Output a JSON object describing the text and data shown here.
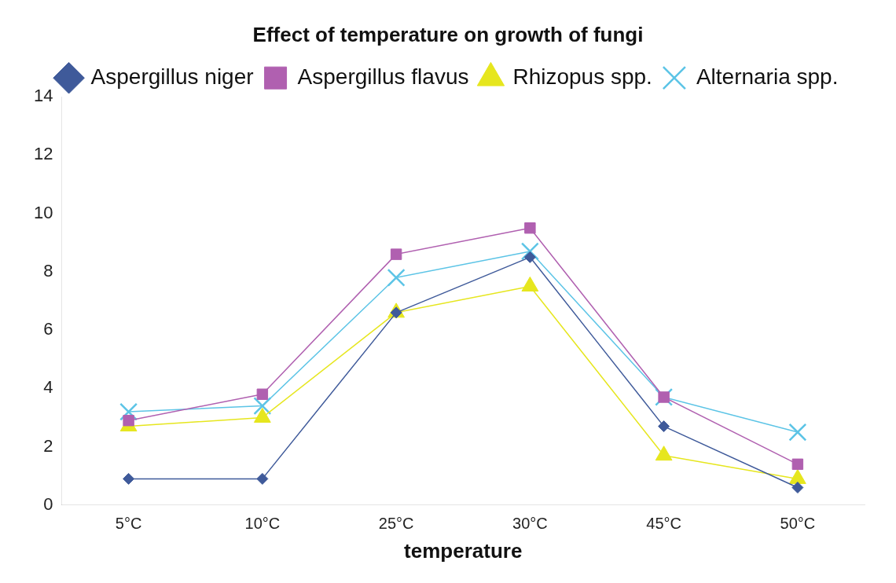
{
  "chart_data": {
    "type": "line",
    "title": "Effect of temperature on growth of fungi",
    "xlabel": "temperature",
    "categories": [
      "5°C",
      "10°C",
      "25°C",
      "30°C",
      "45°C",
      "50°C"
    ],
    "series": [
      {
        "name": "Aspergillus niger",
        "color": "#3f5a9a",
        "marker": "diamond",
        "values": [
          0.9,
          0.9,
          6.6,
          8.5,
          2.7,
          0.6
        ]
      },
      {
        "name": "Aspergillus flavus",
        "color": "#b060b0",
        "marker": "square",
        "values": [
          2.9,
          3.8,
          8.6,
          9.5,
          3.7,
          1.4
        ]
      },
      {
        "name": "Rhizopus spp.",
        "color": "#e6e61e",
        "marker": "triangle",
        "values": [
          2.7,
          3.0,
          6.6,
          7.5,
          1.7,
          0.9
        ]
      },
      {
        "name": "Alternaria spp.",
        "color": "#5cc4e6",
        "marker": "cross",
        "values": [
          3.2,
          3.4,
          7.8,
          8.7,
          3.7,
          2.5
        ]
      }
    ],
    "ylim": [
      0,
      14
    ],
    "yticks": [
      0,
      2,
      4,
      6,
      8,
      10,
      12,
      14
    ],
    "grid": false,
    "legend": "top"
  }
}
